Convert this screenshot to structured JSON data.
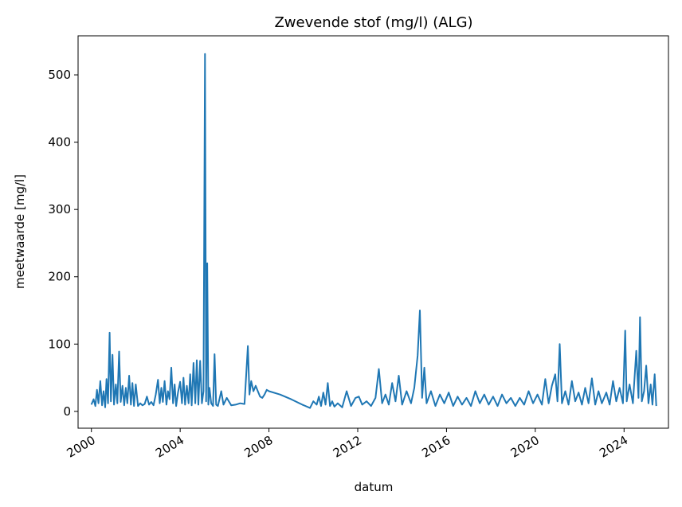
{
  "chart_data": {
    "type": "line",
    "title": "Zwevende stof (mg/l) (ALG)",
    "xlabel": "datum",
    "ylabel": "meetwaarde [mg/l]",
    "xlim": [
      1999.4,
      2026.0
    ],
    "ylim": [
      -25,
      558
    ],
    "x_ticks": [
      2000,
      2004,
      2008,
      2012,
      2016,
      2020,
      2024
    ],
    "x_tick_labels": [
      "2000",
      "2004",
      "2008",
      "2012",
      "2016",
      "2020",
      "2024"
    ],
    "y_ticks": [
      0,
      100,
      200,
      300,
      400,
      500
    ],
    "y_tick_labels": [
      "0",
      "100",
      "200",
      "300",
      "400",
      "500"
    ],
    "grid": false,
    "series": [
      {
        "color": "#1f77b4",
        "points": [
          [
            2000.0,
            10
          ],
          [
            2000.1,
            18
          ],
          [
            2000.18,
            8
          ],
          [
            2000.25,
            32
          ],
          [
            2000.32,
            12
          ],
          [
            2000.4,
            45
          ],
          [
            2000.48,
            9
          ],
          [
            2000.55,
            30
          ],
          [
            2000.62,
            6
          ],
          [
            2000.68,
            48
          ],
          [
            2000.75,
            12
          ],
          [
            2000.82,
            117
          ],
          [
            2000.88,
            15
          ],
          [
            2000.95,
            84
          ],
          [
            2001.02,
            10
          ],
          [
            2001.1,
            40
          ],
          [
            2001.17,
            12
          ],
          [
            2001.25,
            89
          ],
          [
            2001.32,
            14
          ],
          [
            2001.4,
            38
          ],
          [
            2001.48,
            9
          ],
          [
            2001.55,
            35
          ],
          [
            2001.62,
            12
          ],
          [
            2001.7,
            53
          ],
          [
            2001.78,
            10
          ],
          [
            2001.85,
            42
          ],
          [
            2001.92,
            8
          ],
          [
            2002.0,
            40
          ],
          [
            2002.1,
            8
          ],
          [
            2002.2,
            12
          ],
          [
            2002.3,
            9
          ],
          [
            2002.4,
            11
          ],
          [
            2002.5,
            22
          ],
          [
            2002.6,
            10
          ],
          [
            2002.7,
            14
          ],
          [
            2002.8,
            9
          ],
          [
            2002.9,
            25
          ],
          [
            2003.0,
            47
          ],
          [
            2003.08,
            12
          ],
          [
            2003.15,
            35
          ],
          [
            2003.22,
            14
          ],
          [
            2003.3,
            45
          ],
          [
            2003.38,
            10
          ],
          [
            2003.45,
            30
          ],
          [
            2003.52,
            18
          ],
          [
            2003.6,
            65
          ],
          [
            2003.68,
            12
          ],
          [
            2003.75,
            40
          ],
          [
            2003.82,
            8
          ],
          [
            2003.9,
            28
          ],
          [
            2004.0,
            44
          ],
          [
            2004.08,
            12
          ],
          [
            2004.15,
            50
          ],
          [
            2004.22,
            10
          ],
          [
            2004.3,
            38
          ],
          [
            2004.38,
            12
          ],
          [
            2004.45,
            55
          ],
          [
            2004.52,
            9
          ],
          [
            2004.6,
            72
          ],
          [
            2004.68,
            12
          ],
          [
            2004.75,
            76
          ],
          [
            2004.82,
            10
          ],
          [
            2004.9,
            75
          ],
          [
            2004.98,
            12
          ],
          [
            2005.05,
            30
          ],
          [
            2005.12,
            531
          ],
          [
            2005.17,
            15
          ],
          [
            2005.22,
            220
          ],
          [
            2005.27,
            10
          ],
          [
            2005.32,
            35
          ],
          [
            2005.4,
            12
          ],
          [
            2005.48,
            8
          ],
          [
            2005.55,
            85
          ],
          [
            2005.62,
            10
          ],
          [
            2005.7,
            8
          ],
          [
            2005.85,
            30
          ],
          [
            2005.95,
            10
          ],
          [
            2006.1,
            20
          ],
          [
            2006.3,
            9
          ],
          [
            2006.5,
            10
          ],
          [
            2006.7,
            12
          ],
          [
            2006.9,
            11
          ],
          [
            2007.05,
            97
          ],
          [
            2007.12,
            25
          ],
          [
            2007.2,
            45
          ],
          [
            2007.3,
            30
          ],
          [
            2007.4,
            38
          ],
          [
            2007.5,
            30
          ],
          [
            2007.6,
            22
          ],
          [
            2007.7,
            20
          ],
          [
            2007.8,
            25
          ],
          [
            2007.9,
            32
          ],
          [
            2008.0,
            30
          ],
          [
            2008.5,
            25
          ],
          [
            2009.0,
            18
          ],
          [
            2009.5,
            10
          ],
          [
            2009.85,
            5
          ],
          [
            2010.0,
            15
          ],
          [
            2010.15,
            10
          ],
          [
            2010.25,
            22
          ],
          [
            2010.35,
            8
          ],
          [
            2010.45,
            28
          ],
          [
            2010.55,
            10
          ],
          [
            2010.65,
            42
          ],
          [
            2010.75,
            8
          ],
          [
            2010.85,
            15
          ],
          [
            2010.95,
            7
          ],
          [
            2011.1,
            12
          ],
          [
            2011.3,
            6
          ],
          [
            2011.5,
            30
          ],
          [
            2011.7,
            8
          ],
          [
            2011.9,
            20
          ],
          [
            2012.05,
            22
          ],
          [
            2012.2,
            10
          ],
          [
            2012.4,
            15
          ],
          [
            2012.6,
            8
          ],
          [
            2012.8,
            20
          ],
          [
            2012.95,
            63
          ],
          [
            2013.1,
            12
          ],
          [
            2013.25,
            25
          ],
          [
            2013.4,
            10
          ],
          [
            2013.55,
            42
          ],
          [
            2013.7,
            15
          ],
          [
            2013.85,
            53
          ],
          [
            2014.0,
            10
          ],
          [
            2014.2,
            30
          ],
          [
            2014.4,
            12
          ],
          [
            2014.55,
            35
          ],
          [
            2014.7,
            83
          ],
          [
            2014.8,
            150
          ],
          [
            2014.9,
            20
          ],
          [
            2015.0,
            65
          ],
          [
            2015.1,
            12
          ],
          [
            2015.3,
            30
          ],
          [
            2015.5,
            8
          ],
          [
            2015.7,
            25
          ],
          [
            2015.9,
            12
          ],
          [
            2016.1,
            28
          ],
          [
            2016.3,
            8
          ],
          [
            2016.5,
            22
          ],
          [
            2016.7,
            10
          ],
          [
            2016.9,
            20
          ],
          [
            2017.1,
            8
          ],
          [
            2017.3,
            30
          ],
          [
            2017.5,
            12
          ],
          [
            2017.7,
            25
          ],
          [
            2017.9,
            10
          ],
          [
            2018.1,
            22
          ],
          [
            2018.3,
            8
          ],
          [
            2018.5,
            25
          ],
          [
            2018.7,
            12
          ],
          [
            2018.9,
            20
          ],
          [
            2019.1,
            8
          ],
          [
            2019.3,
            20
          ],
          [
            2019.5,
            10
          ],
          [
            2019.7,
            30
          ],
          [
            2019.9,
            12
          ],
          [
            2020.1,
            25
          ],
          [
            2020.3,
            10
          ],
          [
            2020.45,
            48
          ],
          [
            2020.6,
            12
          ],
          [
            2020.75,
            38
          ],
          [
            2020.9,
            55
          ],
          [
            2021.0,
            15
          ],
          [
            2021.1,
            100
          ],
          [
            2021.2,
            12
          ],
          [
            2021.35,
            30
          ],
          [
            2021.5,
            10
          ],
          [
            2021.65,
            45
          ],
          [
            2021.8,
            15
          ],
          [
            2021.95,
            28
          ],
          [
            2022.1,
            10
          ],
          [
            2022.25,
            35
          ],
          [
            2022.4,
            12
          ],
          [
            2022.55,
            49
          ],
          [
            2022.7,
            10
          ],
          [
            2022.85,
            30
          ],
          [
            2023.0,
            12
          ],
          [
            2023.2,
            28
          ],
          [
            2023.35,
            10
          ],
          [
            2023.5,
            45
          ],
          [
            2023.65,
            15
          ],
          [
            2023.8,
            35
          ],
          [
            2023.95,
            12
          ],
          [
            2024.05,
            120
          ],
          [
            2024.12,
            15
          ],
          [
            2024.25,
            40
          ],
          [
            2024.4,
            12
          ],
          [
            2024.55,
            90
          ],
          [
            2024.65,
            20
          ],
          [
            2024.72,
            140
          ],
          [
            2024.8,
            15
          ],
          [
            2024.9,
            30
          ],
          [
            2025.0,
            68
          ],
          [
            2025.1,
            12
          ],
          [
            2025.2,
            40
          ],
          [
            2025.28,
            10
          ],
          [
            2025.38,
            55
          ],
          [
            2025.45,
            8
          ]
        ]
      }
    ]
  }
}
